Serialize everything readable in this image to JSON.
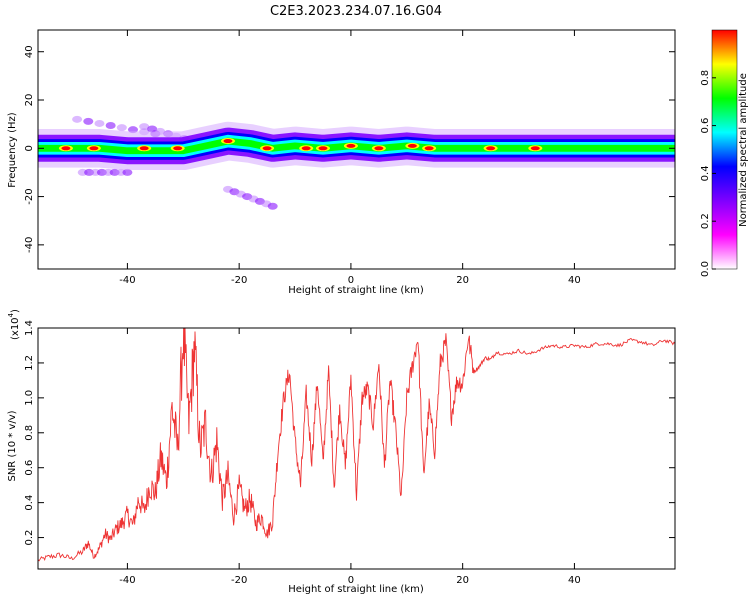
{
  "figure": {
    "title": "C2E3.2023.234.07.16.G04"
  },
  "chart_data": [
    {
      "type": "heatmap",
      "title": "",
      "xlabel": "Height of straight line (km)",
      "ylabel": "Frequency (Hz)",
      "xlim": [
        -56,
        58
      ],
      "ylim": [
        -50,
        49
      ],
      "xticks": [
        -40,
        -20,
        0,
        20,
        40
      ],
      "yticks": [
        -40,
        -20,
        0,
        20,
        40
      ],
      "colorbar": {
        "label": "Normalized spectral amplitude",
        "range": [
          0.0,
          1.0
        ],
        "ticks": [
          0.0,
          0.2,
          0.4,
          0.6,
          0.8
        ],
        "tick_labels": [
          "0.0",
          "0.2",
          "0.4",
          "0.6",
          "0.8"
        ],
        "colors": [
          "#ffffff",
          "#ff00ff",
          "#7f00ff",
          "#0000ff",
          "#00ffff",
          "#00ff00",
          "#ffff00",
          "#ff0000"
        ]
      },
      "main_band": {
        "points": [
          [
            -56,
            0
          ],
          [
            -50,
            0
          ],
          [
            -45,
            0
          ],
          [
            -40,
            -1
          ],
          [
            -35,
            -1
          ],
          [
            -30,
            -1
          ],
          [
            -26,
            1
          ],
          [
            -22,
            3
          ],
          [
            -18,
            2
          ],
          [
            -14,
            0
          ],
          [
            -10,
            1
          ],
          [
            -5,
            0
          ],
          [
            0,
            1
          ],
          [
            5,
            0
          ],
          [
            10,
            1
          ],
          [
            15,
            0
          ],
          [
            20,
            0
          ],
          [
            30,
            0
          ],
          [
            40,
            0
          ],
          [
            58,
            0
          ]
        ],
        "half_width_hz": 4
      },
      "hot_spots": [
        [
          -51,
          0
        ],
        [
          -46,
          0
        ],
        [
          -37,
          0
        ],
        [
          -31,
          0
        ],
        [
          -22,
          3
        ],
        [
          -15,
          0
        ],
        [
          -8,
          0
        ],
        [
          -5,
          0
        ],
        [
          0,
          1
        ],
        [
          5,
          0
        ],
        [
          11,
          1
        ],
        [
          14,
          0
        ],
        [
          25,
          0
        ],
        [
          33,
          0
        ]
      ],
      "scatter_blobs": [
        {
          "x": [
            -48,
            -40
          ],
          "y": [
            -10,
            -10
          ]
        },
        {
          "x": [
            -49,
            -35
          ],
          "y": [
            12,
            6
          ]
        },
        {
          "x": [
            -37,
            -27
          ],
          "y": [
            9,
            2
          ]
        },
        {
          "x": [
            -22,
            -14
          ],
          "y": [
            -17,
            -24
          ]
        }
      ]
    },
    {
      "type": "line",
      "title": "",
      "xlabel": "Height of straight line (km)",
      "ylabel": "SNR (10 * v/v)",
      "y_multiplier": "(x10",
      "y_multiplier_exponent": "4",
      "y_multiplier_close": ")",
      "xlim": [
        -56,
        58
      ],
      "ylim": [
        0.02,
        1.4
      ],
      "xticks": [
        -40,
        -20,
        0,
        20,
        40
      ],
      "yticks": [
        0.2,
        0.4,
        0.6,
        0.8,
        1.0,
        1.2,
        1.4
      ],
      "ytick_labels": [
        "0.2",
        "0.4",
        "0.6",
        "0.8",
        "1.0",
        "1.2",
        "1.4"
      ],
      "color": "#ee3333",
      "series": [
        {
          "name": "SNR",
          "x": [
            -56,
            -54,
            -52,
            -50,
            -48,
            -47,
            -46,
            -45,
            -44,
            -43,
            -42,
            -41,
            -40,
            -39,
            -38,
            -37,
            -36,
            -35,
            -34,
            -33,
            -32,
            -31,
            -30,
            -29,
            -28,
            -27,
            -26,
            -25,
            -24,
            -23,
            -22,
            -21,
            -20,
            -19,
            -18,
            -17,
            -16,
            -15,
            -14,
            -13,
            -12,
            -11,
            -10,
            -9,
            -8,
            -7,
            -6,
            -5,
            -4,
            -3,
            -2,
            -1,
            0,
            1,
            2,
            3,
            4,
            5,
            6,
            7,
            8,
            9,
            10,
            11,
            12,
            13,
            14,
            15,
            16,
            17,
            18,
            19,
            20,
            21,
            22,
            23,
            24,
            25,
            26,
            28,
            30,
            32,
            34,
            36,
            38,
            40,
            42,
            44,
            46,
            48,
            50,
            52,
            54,
            56,
            58
          ],
          "values": [
            0.07,
            0.09,
            0.1,
            0.08,
            0.12,
            0.17,
            0.09,
            0.14,
            0.22,
            0.19,
            0.25,
            0.28,
            0.33,
            0.27,
            0.42,
            0.35,
            0.5,
            0.45,
            0.66,
            0.52,
            0.95,
            0.7,
            1.38,
            0.85,
            1.3,
            0.7,
            0.85,
            0.55,
            0.75,
            0.42,
            0.55,
            0.32,
            0.48,
            0.36,
            0.42,
            0.28,
            0.32,
            0.22,
            0.3,
            0.72,
            1.0,
            1.15,
            0.75,
            0.5,
            1.02,
            0.65,
            1.1,
            0.62,
            1.15,
            0.5,
            0.95,
            0.6,
            1.12,
            0.45,
            1.0,
            1.05,
            0.85,
            1.2,
            0.6,
            1.1,
            0.82,
            0.42,
            1.0,
            1.18,
            1.35,
            0.55,
            0.95,
            0.7,
            1.2,
            1.32,
            0.9,
            1.1,
            1.08,
            1.35,
            1.15,
            1.18,
            1.23,
            1.22,
            1.26,
            1.25,
            1.27,
            1.25,
            1.28,
            1.3,
            1.29,
            1.3,
            1.29,
            1.31,
            1.31,
            1.3,
            1.33,
            1.32,
            1.3,
            1.33,
            1.31
          ]
        }
      ]
    }
  ]
}
